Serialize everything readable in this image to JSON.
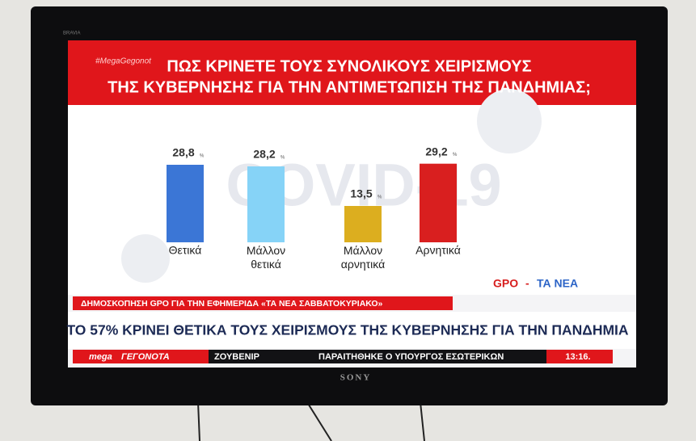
{
  "brand": "BRAVIA",
  "maker": "SONY",
  "chart_data": {
    "type": "bar",
    "hashtag": "#MegaGegonot",
    "title": [
      "ΠΩΣ ΚΡΙΝΕΤΕ ΤΟΥΣ ΣΥΝΟΛΙΚΟΥΣ ΧΕΙΡΙΣΜΟΥΣ",
      "ΤΗΣ ΚΥΒΕΡΝΗΣΗΣ ΓΙΑ ΤΗΝ ΑΝΤΙΜΕΤΩΠΙΣΗ ΤΗΣ ΠΑΝΔΗΜΙΑΣ;"
    ],
    "watermark": "COVID-19",
    "categories": [
      "Θετικά",
      "Μάλλον θετικά",
      "Μάλλον αρνητικά",
      "Αρνητικά"
    ],
    "values": [
      28.8,
      28.2,
      13.5,
      29.2
    ],
    "value_labels": [
      "28,8",
      "28,2",
      "13,5",
      "29,2"
    ],
    "unit": "%",
    "colors": [
      "#3b76d6",
      "#86d3f7",
      "#dcae1f",
      "#d91f1f"
    ],
    "ylim": [
      0,
      30
    ],
    "source": [
      "GPO",
      "-",
      "ΤΑ ΝΕΑ"
    ]
  },
  "strap": "ΔΗΜΟΣΚΟΠΗΣΗ GPO ΓΙΑ ΤΗΝ ΕΦΗΜΕΡΙΔΑ «ΤΑ ΝΕΑ ΣΑΒΒΑΤΟΚΥΡΙΑΚΟ»",
  "headline": "ΤΟ 57% ΚΡΙΝΕΙ ΘΕΤΙΚΑ ΤΟΥΣ ΧΕΙΡΙΣΜΟΥΣ ΤΗΣ ΚΥΒΕΡΝΗΣΗΣ ΓΙΑ ΤΗΝ ΠΑΝΔΗΜΙΑ",
  "ticker": {
    "logo": [
      "mega",
      "ΓΕΓΟΝΟΤΑ"
    ],
    "items": [
      "ΖΟΥΒΕΝΙΡ",
      "ΠΑΡΑΙΤΗΘΗΚΕ Ο ΥΠΟΥΡΓΟΣ ΕΣΩΤΕΡΙΚΩΝ"
    ],
    "clock": "13:16."
  }
}
